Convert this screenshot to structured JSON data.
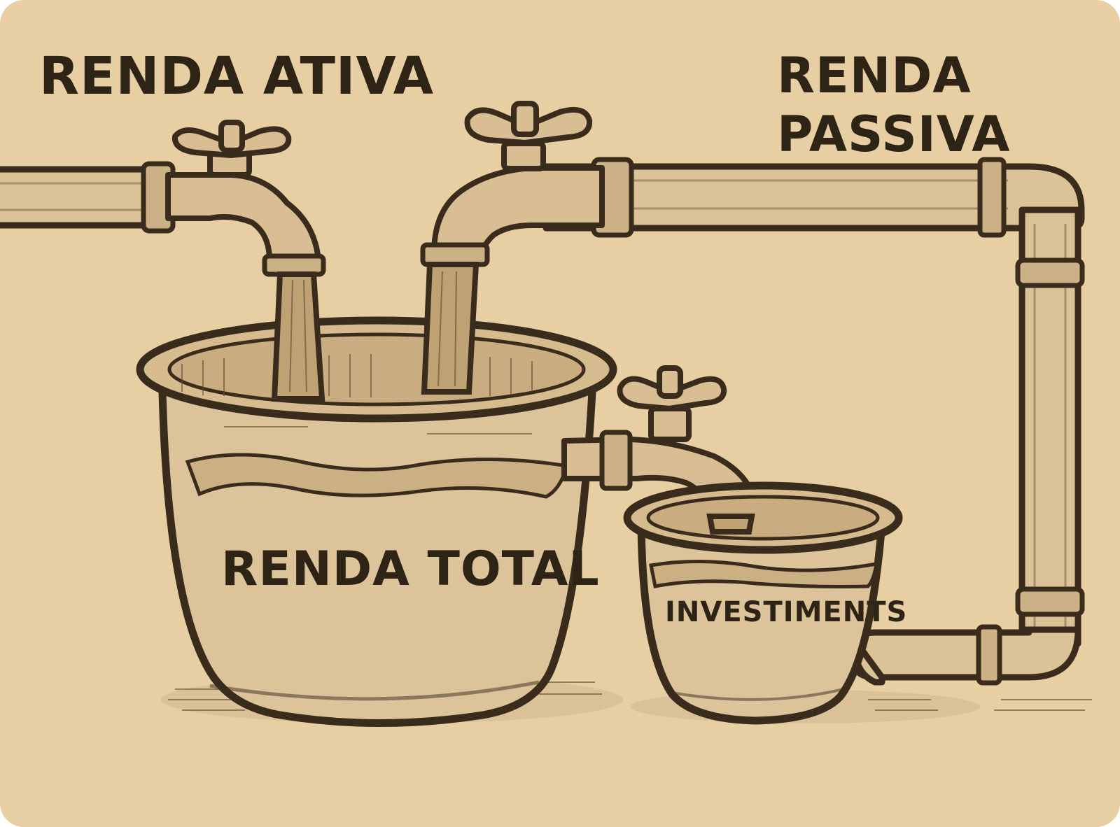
{
  "labels": {
    "active_income": "RENDA ATIVA",
    "passive_income_line1": "RENDA",
    "passive_income_line2": "PASSIVA",
    "total_income": "RENDA TOTAL",
    "investments": "INVESTIMENTS"
  },
  "colors": {
    "background": "#e8cfa3",
    "ink": "#3a2c1c",
    "pipe": "#dcc297"
  },
  "icons": [
    "faucet-icon",
    "faucet-icon",
    "faucet-icon",
    "pipe-icon",
    "bucket-icon",
    "bucket-icon"
  ]
}
